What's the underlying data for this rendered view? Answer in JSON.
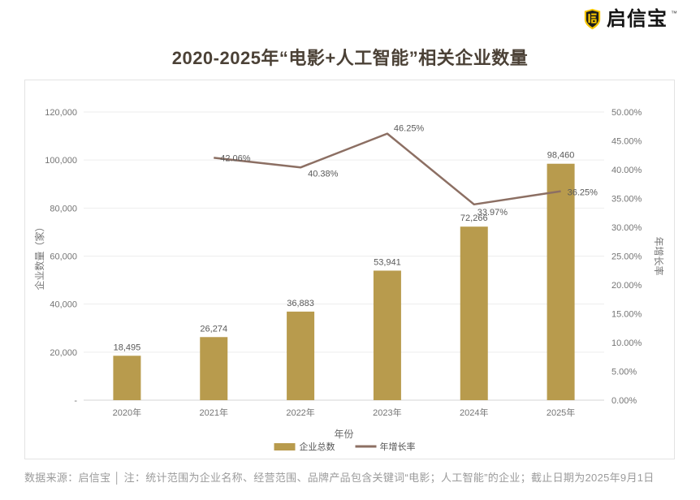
{
  "logo": {
    "brand": "启信宝",
    "trademark": "™",
    "icon": "qixinbao-shield-icon",
    "shield_color": "#f7c600",
    "shield_inner_color": "#1d1d1b"
  },
  "title": "2020-2025年“电影+人工智能”相关企业数量",
  "chart_data": {
    "type": "bar",
    "categories": [
      "2020年",
      "2021年",
      "2022年",
      "2023年",
      "2024年",
      "2025年"
    ],
    "series": [
      {
        "name": "企业总数",
        "type": "bar",
        "axis": "left",
        "values": [
          18495,
          26274,
          36883,
          53941,
          72266,
          98460
        ],
        "color": "#b89b4d"
      },
      {
        "name": "年增长率",
        "type": "line",
        "axis": "right",
        "values": [
          null,
          42.06,
          40.38,
          46.25,
          33.97,
          36.25
        ],
        "labels": [
          "",
          "42.06%",
          "40.38%",
          "46.25%",
          "33.97%",
          "36.25%"
        ],
        "color": "#8c6f63"
      }
    ],
    "xlabel": "年份",
    "left_axis": {
      "label": "企业数量（家）",
      "min": 0,
      "max": 120000,
      "step": 20000,
      "zero_tick": "-"
    },
    "right_axis": {
      "label": "年增长率",
      "min": 0,
      "max": 50,
      "step": 5,
      "format": "percent"
    },
    "legend": [
      "企业总数",
      "年增长率"
    ],
    "legend_position": "bottom",
    "grid": true,
    "colors": {
      "grid": "#ededed",
      "baseline": "#d6d6d6",
      "tick_text": "#757575",
      "value_label": "#595959"
    }
  },
  "footer": "数据来源：启信宝 │ 注：统计范围为企业名称、经营范围、品牌产品包含关键词“电影；人工智能”的企业；截止日期为2025年9月1日"
}
